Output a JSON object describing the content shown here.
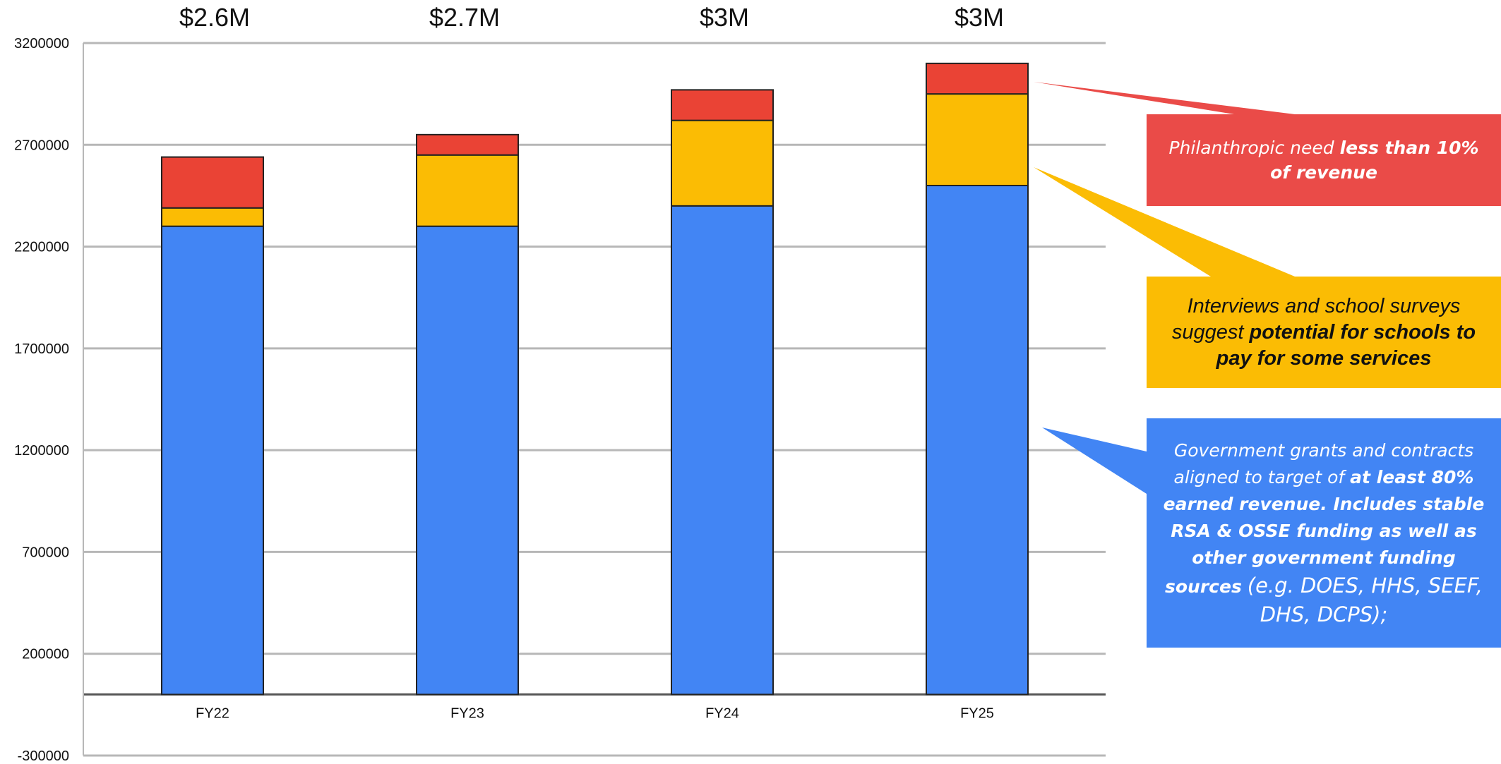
{
  "chart_data": {
    "type": "bar",
    "stacked": true,
    "categories": [
      "FY22",
      "FY23",
      "FY24",
      "FY25"
    ],
    "totals_labels": [
      "$2.6M",
      "$2.7M",
      "$3M",
      "$3M"
    ],
    "series": [
      {
        "color": "#4285f4",
        "values": [
          2300000,
          2300000,
          2400000,
          2500000
        ]
      },
      {
        "color": "#fbbc04",
        "values": [
          90000,
          350000,
          420000,
          450000
        ]
      },
      {
        "color": "#ea4335",
        "values": [
          250000,
          100000,
          150000,
          150000
        ]
      }
    ],
    "ylim": [
      -300000,
      3200000
    ],
    "yticks": [
      "3200000",
      "2700000",
      "2200000",
      "1700000",
      "1200000",
      "700000",
      "200000",
      "-300000"
    ],
    "grid": true,
    "xlabel": "",
    "ylabel": ""
  },
  "callouts": {
    "philanthropic": {
      "color": "#ea4b48",
      "text_plain": "Philanthropic need ",
      "text_bold": "less than 10% of revenue"
    },
    "schools": {
      "color": "#fbbc04",
      "text_plain": "Interviews and school surveys suggest ",
      "text_bold": "potential for schools to pay for some services"
    },
    "government": {
      "color": "#4285f4",
      "text_plain": "Government grants and contracts aligned to target of ",
      "text_bold": "at least 80% earned revenue. Includes stable RSA & OSSE funding as well as other government funding sources",
      "text_tail": "(e.g. DOES, HHS, SEEF, DHS, DCPS);"
    }
  }
}
